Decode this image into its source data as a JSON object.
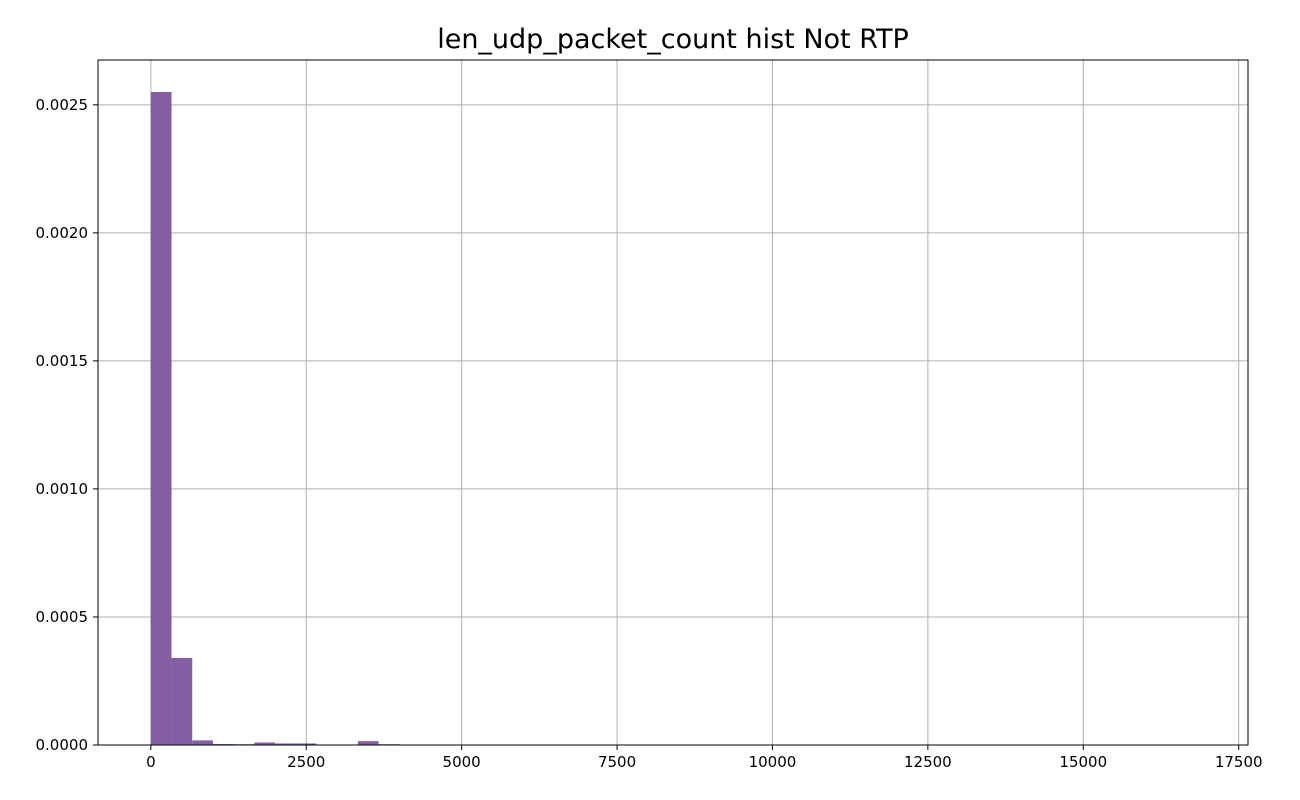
{
  "chart_data": {
    "type": "bar",
    "title": "len_udp_packet_count hist Not RTP",
    "xlabel": "",
    "ylabel": "",
    "xlim": [
      -850,
      17650
    ],
    "ylim": [
      0,
      0.002675
    ],
    "grid": true,
    "colors": {
      "bar": "#835ea3",
      "grid": "#b0b0b0",
      "axes": "#000000"
    },
    "xticks": [
      0,
      2500,
      5000,
      7500,
      10000,
      12500,
      15000,
      17500
    ],
    "xtick_labels": [
      "0",
      "2500",
      "5000",
      "7500",
      "10000",
      "12500",
      "15000",
      "17500"
    ],
    "yticks": [
      0,
      0.0005,
      0.001,
      0.0015,
      0.002,
      0.0025
    ],
    "ytick_labels": [
      "0.0000",
      "0.0005",
      "0.0010",
      "0.0015",
      "0.0020",
      "0.0025"
    ],
    "bin_width": 333,
    "bins": [
      {
        "start": 0,
        "value": 0.00255
      },
      {
        "start": 333,
        "value": 0.00034
      },
      {
        "start": 666,
        "value": 1.8e-05
      },
      {
        "start": 999,
        "value": 4e-06
      },
      {
        "start": 1332,
        "value": 3e-06
      },
      {
        "start": 1665,
        "value": 1e-05
      },
      {
        "start": 1998,
        "value": 6e-06
      },
      {
        "start": 2331,
        "value": 6e-06
      },
      {
        "start": 2664,
        "value": 1e-06
      },
      {
        "start": 2997,
        "value": 1e-06
      },
      {
        "start": 3330,
        "value": 1.5e-05
      },
      {
        "start": 3663,
        "value": 3e-06
      }
    ]
  }
}
